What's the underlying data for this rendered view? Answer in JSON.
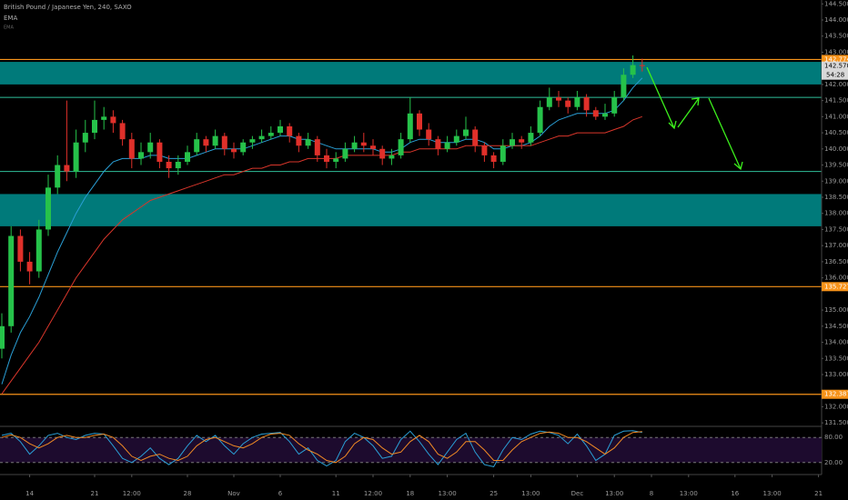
{
  "chart_data": {
    "type": "candlestick",
    "title": "British Pound / Japanese Yen, 240, SAXO",
    "indicator_labels": [
      "EMA",
      "EMA"
    ],
    "ylim": [
      131.42,
      144.62
    ],
    "yticks": [
      {
        "value": 131.5,
        "label": "131.500"
      },
      {
        "value": 132,
        "label": "132.000"
      },
      {
        "value": 133,
        "label": "133.000"
      },
      {
        "value": 133.5,
        "label": "133.500"
      },
      {
        "value": 134,
        "label": "134.000"
      },
      {
        "value": 134.5,
        "label": "134.500"
      },
      {
        "value": 135,
        "label": "135.000"
      },
      {
        "value": 136,
        "label": "136.000"
      },
      {
        "value": 136.5,
        "label": "136.500"
      },
      {
        "value": 137,
        "label": "137.000"
      },
      {
        "value": 137.5,
        "label": "137.500"
      },
      {
        "value": 138,
        "label": "138.000"
      },
      {
        "value": 138.5,
        "label": "138.500"
      },
      {
        "value": 139,
        "label": "139.000"
      },
      {
        "value": 139.5,
        "label": "139.500"
      },
      {
        "value": 140,
        "label": "140.000"
      },
      {
        "value": 140.5,
        "label": "140.500"
      },
      {
        "value": 141,
        "label": "141.000"
      },
      {
        "value": 141.5,
        "label": "141.500"
      },
      {
        "value": 142,
        "label": "142.000"
      },
      {
        "value": 143,
        "label": "143.000"
      },
      {
        "value": 143.5,
        "label": "143.500"
      },
      {
        "value": 144,
        "label": "144.000"
      },
      {
        "value": 144.5,
        "label": "144.500"
      }
    ],
    "grid": false,
    "categories": [
      null,
      null,
      null,
      "14",
      null,
      null,
      null,
      null,
      null,
      null,
      "21",
      null,
      null,
      null,
      "12:00",
      null,
      null,
      null,
      null,
      null,
      "28",
      null,
      null,
      null,
      null,
      "Nov",
      null,
      null,
      null,
      null,
      "6",
      null,
      null,
      null,
      null,
      null,
      "11",
      null,
      null,
      null,
      "12:00",
      null,
      null,
      null,
      "18",
      null,
      null,
      null,
      "13:00",
      null,
      null,
      null,
      null,
      "25",
      null,
      null,
      null,
      "13:00",
      null,
      null,
      null,
      null,
      "Dec",
      null,
      null,
      null,
      "13:00",
      null,
      null,
      null,
      "8",
      null,
      null,
      null,
      "13:00",
      null,
      null,
      null,
      null,
      "16",
      null,
      null,
      null,
      "13:00",
      null,
      null,
      null,
      null,
      "21"
    ],
    "up_color": "#26c24a",
    "down_color": "#e0302a",
    "ohlc": [
      [
        133.8,
        134.9,
        133.5,
        134.5
      ],
      [
        134.5,
        137.6,
        134.3,
        137.3
      ],
      [
        137.3,
        137.5,
        136.2,
        136.5
      ],
      [
        136.5,
        136.8,
        135.8,
        136.2
      ],
      [
        136.2,
        137.8,
        136.0,
        137.5
      ],
      [
        137.5,
        139.2,
        137.3,
        138.8
      ],
      [
        138.8,
        139.8,
        138.6,
        139.5
      ],
      [
        139.5,
        141.5,
        139.0,
        139.3
      ],
      [
        139.3,
        140.6,
        139.1,
        140.2
      ],
      [
        140.2,
        140.9,
        139.9,
        140.5
      ],
      [
        140.5,
        141.5,
        140.3,
        140.9
      ],
      [
        140.9,
        141.3,
        140.6,
        141.0
      ],
      [
        141.0,
        141.2,
        140.5,
        140.8
      ],
      [
        140.8,
        140.9,
        140.1,
        140.3
      ],
      [
        140.3,
        140.5,
        139.4,
        139.7
      ],
      [
        139.7,
        140.2,
        139.5,
        139.9
      ],
      [
        139.9,
        140.5,
        139.7,
        140.2
      ],
      [
        140.2,
        140.3,
        139.4,
        139.6
      ],
      [
        139.6,
        139.8,
        139.1,
        139.4
      ],
      [
        139.4,
        139.8,
        139.2,
        139.6
      ],
      [
        139.6,
        140.1,
        139.5,
        139.9
      ],
      [
        139.9,
        140.5,
        139.8,
        140.3
      ],
      [
        140.3,
        140.4,
        139.9,
        140.1
      ],
      [
        140.1,
        140.6,
        140.0,
        140.4
      ],
      [
        140.4,
        140.5,
        139.8,
        140.0
      ],
      [
        140.0,
        140.2,
        139.7,
        139.9
      ],
      [
        139.9,
        140.3,
        139.8,
        140.2
      ],
      [
        140.2,
        140.4,
        140.0,
        140.3
      ],
      [
        140.3,
        140.6,
        140.2,
        140.4
      ],
      [
        140.4,
        140.7,
        140.3,
        140.5
      ],
      [
        140.5,
        140.9,
        140.4,
        140.7
      ],
      [
        140.7,
        140.8,
        140.2,
        140.4
      ],
      [
        140.4,
        140.5,
        139.9,
        140.1
      ],
      [
        140.1,
        140.5,
        140.0,
        140.3
      ],
      [
        140.3,
        140.4,
        139.6,
        139.8
      ],
      [
        139.8,
        140.0,
        139.4,
        139.6
      ],
      [
        139.6,
        139.9,
        139.4,
        139.7
      ],
      [
        139.7,
        140.2,
        139.6,
        140.0
      ],
      [
        140.0,
        140.4,
        139.9,
        140.2
      ],
      [
        140.2,
        140.5,
        139.9,
        140.1
      ],
      [
        140.1,
        140.3,
        139.8,
        140.0
      ],
      [
        140.0,
        140.1,
        139.5,
        139.7
      ],
      [
        139.7,
        140.0,
        139.5,
        139.8
      ],
      [
        139.8,
        140.5,
        139.7,
        140.3
      ],
      [
        140.3,
        141.6,
        140.2,
        141.1
      ],
      [
        141.1,
        141.2,
        140.4,
        140.6
      ],
      [
        140.6,
        140.8,
        140.1,
        140.3
      ],
      [
        140.3,
        140.4,
        139.8,
        140.0
      ],
      [
        140.0,
        140.4,
        139.9,
        140.2
      ],
      [
        140.2,
        140.6,
        140.1,
        140.4
      ],
      [
        140.4,
        141.0,
        140.3,
        140.6
      ],
      [
        140.6,
        140.7,
        139.9,
        140.1
      ],
      [
        140.1,
        140.2,
        139.6,
        139.8
      ],
      [
        139.8,
        139.9,
        139.4,
        139.6
      ],
      [
        139.6,
        140.3,
        139.5,
        140.1
      ],
      [
        140.1,
        140.5,
        140.0,
        140.3
      ],
      [
        140.3,
        140.4,
        140.0,
        140.2
      ],
      [
        140.2,
        140.7,
        140.1,
        140.5
      ],
      [
        140.5,
        141.5,
        140.4,
        141.3
      ],
      [
        141.3,
        141.9,
        141.2,
        141.6
      ],
      [
        141.6,
        141.8,
        141.3,
        141.5
      ],
      [
        141.5,
        141.6,
        141.1,
        141.3
      ],
      [
        141.3,
        141.8,
        141.2,
        141.6
      ],
      [
        141.6,
        141.7,
        141.0,
        141.2
      ],
      [
        141.2,
        141.3,
        140.9,
        141.0
      ],
      [
        141.0,
        141.4,
        140.9,
        141.1
      ],
      [
        141.1,
        141.8,
        141.0,
        141.6
      ],
      [
        141.6,
        142.5,
        141.5,
        142.3
      ],
      [
        142.3,
        142.9,
        142.2,
        142.6
      ],
      [
        142.6,
        142.8,
        142.4,
        142.57
      ],
      null,
      null,
      null,
      null,
      null,
      null,
      null,
      null,
      null,
      null,
      null,
      null,
      null,
      null,
      null,
      null,
      null,
      null,
      null
    ],
    "series": [
      {
        "color": "#2a9fd6",
        "values": [
          132.7,
          133.6,
          134.3,
          134.8,
          135.4,
          136.1,
          136.8,
          137.4,
          138.0,
          138.5,
          138.9,
          139.3,
          139.6,
          139.7,
          139.7,
          139.7,
          139.8,
          139.8,
          139.7,
          139.7,
          139.7,
          139.8,
          139.9,
          140.0,
          140.0,
          140.0,
          140.0,
          140.1,
          140.2,
          140.3,
          140.4,
          140.4,
          140.3,
          140.3,
          140.2,
          140.1,
          140.0,
          140.0,
          140.0,
          140.0,
          140.0,
          139.9,
          139.9,
          140.0,
          140.2,
          140.3,
          140.3,
          140.2,
          140.2,
          140.2,
          140.3,
          140.3,
          140.2,
          140.0,
          140.0,
          140.1,
          140.1,
          140.2,
          140.4,
          140.7,
          140.9,
          141.0,
          141.1,
          141.1,
          141.1,
          141.1,
          141.2,
          141.5,
          141.9,
          142.2,
          null,
          null,
          null,
          null,
          null,
          null,
          null,
          null,
          null,
          null,
          null,
          null,
          null,
          null,
          null,
          null,
          null,
          null,
          null
        ]
      },
      {
        "color": "#d9362b",
        "values": [
          132.4,
          132.8,
          133.2,
          133.6,
          134.0,
          134.5,
          135.0,
          135.5,
          136.0,
          136.4,
          136.8,
          137.2,
          137.5,
          137.8,
          138.0,
          138.2,
          138.4,
          138.5,
          138.6,
          138.7,
          138.8,
          138.9,
          139.0,
          139.1,
          139.2,
          139.2,
          139.3,
          139.4,
          139.4,
          139.5,
          139.5,
          139.6,
          139.6,
          139.7,
          139.7,
          139.7,
          139.7,
          139.8,
          139.8,
          139.8,
          139.8,
          139.8,
          139.8,
          139.9,
          139.9,
          140.0,
          140.0,
          140.0,
          140.0,
          140.0,
          140.1,
          140.1,
          140.1,
          140.1,
          140.1,
          140.1,
          140.1,
          140.1,
          140.2,
          140.3,
          140.4,
          140.4,
          140.5,
          140.5,
          140.5,
          140.5,
          140.6,
          140.7,
          140.9,
          141.0,
          null,
          null,
          null,
          null,
          null,
          null,
          null,
          null,
          null,
          null,
          null,
          null,
          null,
          null,
          null,
          null,
          null,
          null,
          null
        ]
      }
    ],
    "zones": [
      {
        "from": 142.0,
        "to": 142.7,
        "color": "#007a7a"
      },
      {
        "from": 137.6,
        "to": 138.6,
        "color": "#007a7a"
      }
    ],
    "levels": [
      {
        "value": 142.774,
        "label": "142.774",
        "color": "#f7931a"
      },
      {
        "value": 135.727,
        "label": "135.727",
        "color": "#f7931a"
      },
      {
        "value": 132.387,
        "label": "132.387",
        "color": "#f7931a"
      }
    ],
    "support_lines": [
      {
        "value": 141.6,
        "color": "#2fbf9a"
      },
      {
        "value": 139.3,
        "color": "#2fbf9a"
      }
    ],
    "last_price": {
      "value": 142.57,
      "label": "142.570",
      "countdown": "54:28"
    },
    "oscillator": {
      "ylim": [
        0,
        100
      ],
      "yticks": [
        {
          "value": 80,
          "label": "80.00"
        },
        {
          "value": 20,
          "label": "20.00"
        }
      ],
      "series": [
        {
          "color": "#2a9fd6",
          "values": [
            85,
            90,
            70,
            40,
            60,
            85,
            90,
            80,
            75,
            85,
            90,
            88,
            60,
            30,
            20,
            35,
            55,
            30,
            15,
            30,
            60,
            85,
            70,
            85,
            60,
            40,
            65,
            80,
            88,
            90,
            92,
            70,
            40,
            55,
            25,
            12,
            25,
            70,
            90,
            80,
            60,
            30,
            35,
            75,
            95,
            70,
            40,
            15,
            45,
            75,
            90,
            45,
            15,
            10,
            50,
            80,
            75,
            88,
            95,
            92,
            85,
            65,
            88,
            60,
            25,
            40,
            85,
            95,
            96,
            92,
            null,
            null,
            null,
            null,
            null,
            null,
            null,
            null,
            null,
            null,
            null,
            null,
            null,
            null,
            null,
            null,
            null,
            null,
            null
          ]
        },
        {
          "color": "#f08a24",
          "values": [
            80,
            86,
            80,
            65,
            55,
            65,
            80,
            85,
            80,
            80,
            85,
            88,
            80,
            60,
            35,
            25,
            35,
            40,
            30,
            25,
            35,
            60,
            75,
            80,
            70,
            60,
            55,
            65,
            80,
            88,
            90,
            85,
            65,
            50,
            40,
            25,
            20,
            35,
            65,
            80,
            75,
            55,
            40,
            45,
            70,
            85,
            70,
            40,
            30,
            45,
            70,
            70,
            50,
            25,
            25,
            50,
            70,
            80,
            90,
            93,
            90,
            80,
            80,
            70,
            55,
            40,
            55,
            80,
            92,
            94,
            null,
            null,
            null,
            null,
            null,
            null,
            null,
            null,
            null,
            null,
            null,
            null,
            null,
            null,
            null,
            null,
            null,
            null,
            null
          ]
        }
      ]
    }
  }
}
